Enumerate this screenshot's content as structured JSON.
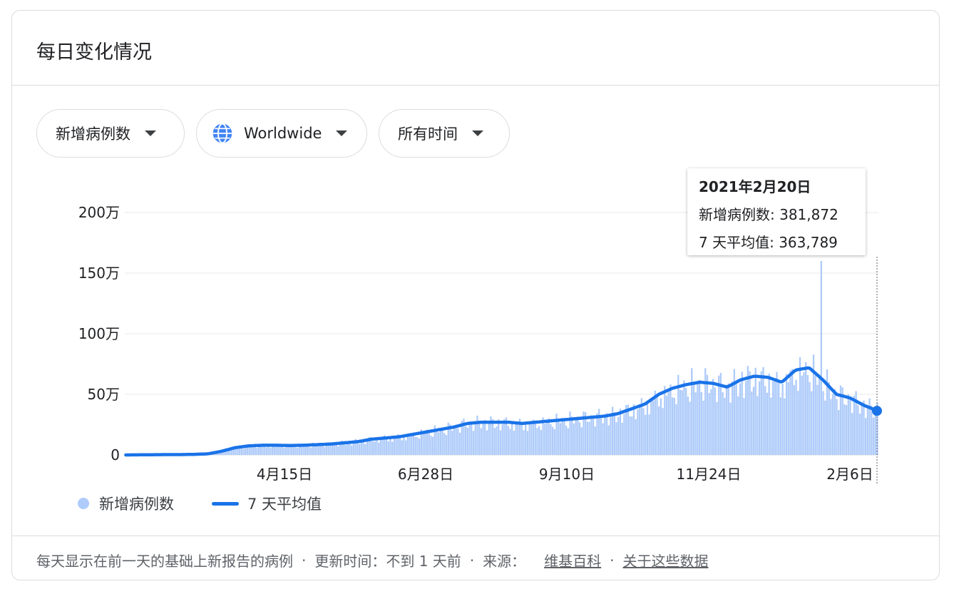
{
  "card": {
    "title": "每日变化情况"
  },
  "filters": {
    "metric": "新增病例数",
    "region": "Worldwide",
    "period": "所有时间"
  },
  "tooltip": {
    "date": "2021年2月20日",
    "new_cases_label": "新增病例数",
    "new_cases_value": "381,872",
    "avg_label": "7 天平均值",
    "avg_value": "363,789"
  },
  "legend": {
    "bars": "新增病例数",
    "line": "7 天平均值"
  },
  "footer": {
    "note": "每天显示在前一天的基础上新报告的病例",
    "updated": "更新时间：不到 1 天前",
    "source_label": "来源：",
    "source_link": "维基百科",
    "about_link": "关于这些数据"
  },
  "colors": {
    "bars": "#aecbfa",
    "line": "#1a73e8",
    "grid": "#e8eaed"
  },
  "chart_data": {
    "type": "bar",
    "y_ticks": [
      "0",
      "50万",
      "100万",
      "150万",
      "200万"
    ],
    "ylim": [
      0,
      2000000
    ],
    "x_ticks": [
      "4月15日",
      "6月28日",
      "9月10日",
      "11月24日",
      "2月6日"
    ],
    "series": [
      {
        "name": "新增病例数",
        "type": "bar",
        "weekly_values": [
          0,
          1000,
          2000,
          3000,
          3000,
          5000,
          9000,
          30000,
          60000,
          75000,
          80000,
          80000,
          78000,
          80000,
          85000,
          90000,
          100000,
          110000,
          130000,
          140000,
          150000,
          170000,
          190000,
          210000,
          230000,
          260000,
          270000,
          270000,
          270000,
          260000,
          270000,
          280000,
          290000,
          300000,
          310000,
          320000,
          340000,
          380000,
          420000,
          500000,
          550000,
          580000,
          600000,
          590000,
          560000,
          620000,
          650000,
          640000,
          600000,
          700000,
          720000,
          620000,
          500000,
          470000,
          410000,
          381872
        ]
      },
      {
        "name": "7 天平均值",
        "type": "line",
        "weekly_values": [
          0,
          1000,
          2000,
          3000,
          3000,
          5000,
          9000,
          30000,
          60000,
          75000,
          80000,
          80000,
          78000,
          80000,
          85000,
          90000,
          100000,
          110000,
          130000,
          140000,
          150000,
          170000,
          190000,
          210000,
          230000,
          260000,
          270000,
          270000,
          270000,
          260000,
          270000,
          280000,
          290000,
          300000,
          310000,
          320000,
          340000,
          380000,
          420000,
          500000,
          550000,
          580000,
          600000,
          590000,
          560000,
          620000,
          650000,
          640000,
          600000,
          700000,
          720000,
          620000,
          500000,
          470000,
          410000,
          363789
        ]
      }
    ],
    "grid": true,
    "legend": "bottom-left"
  }
}
